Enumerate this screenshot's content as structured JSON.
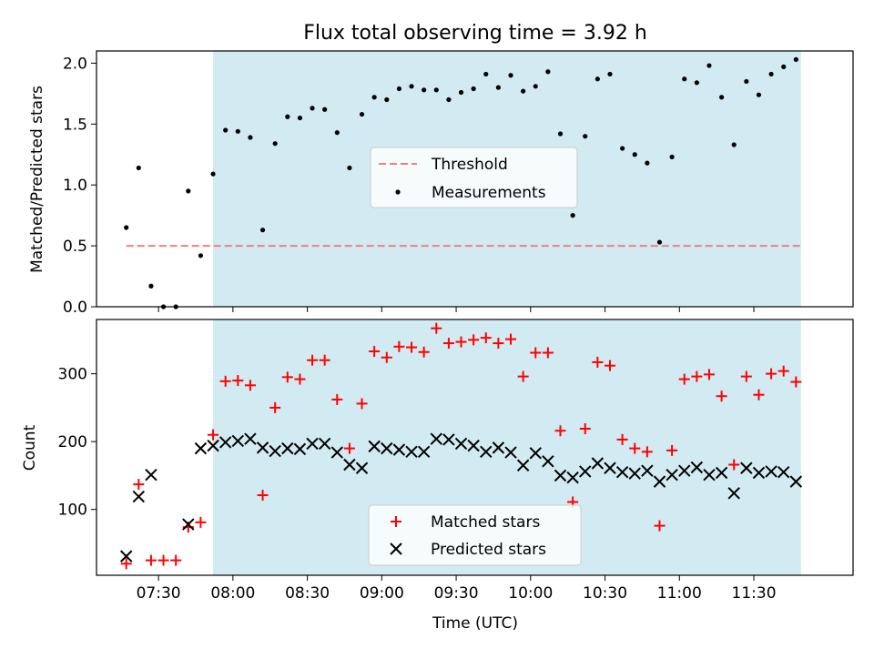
{
  "title": "Flux total observing time = 3.92 h",
  "colors": {
    "shade": "#add8e6",
    "threshold": "#f08080",
    "measurement": "#000000",
    "matched": "#ff0000",
    "predicted": "#000000"
  },
  "chart_data": [
    {
      "type": "scatter",
      "ylabel": "Matched/Predicted stars",
      "ylim": [
        0,
        2.1
      ],
      "yticks": [
        0.0,
        0.5,
        1.0,
        1.5,
        2.0
      ],
      "ytick_labels": [
        "0.0",
        "0.5",
        "1.0",
        "1.5",
        "2.0"
      ],
      "xlim": [
        "07:05",
        "12:10"
      ],
      "shaded_range": [
        "07:52",
        "11:49"
      ],
      "legend": "center",
      "legend_entries": [
        "Threshold",
        "Measurements"
      ],
      "threshold": {
        "name": "Threshold",
        "value": 0.5,
        "x": [
          "07:17",
          "11:49"
        ]
      },
      "series": [
        {
          "name": "Measurements",
          "x": [
            "07:17",
            "07:22",
            "07:27",
            "07:32",
            "07:37",
            "07:42",
            "07:47",
            "07:52",
            "07:57",
            "08:02",
            "08:07",
            "08:12",
            "08:17",
            "08:22",
            "08:27",
            "08:32",
            "08:37",
            "08:42",
            "08:47",
            "08:52",
            "08:57",
            "09:02",
            "09:07",
            "09:12",
            "09:17",
            "09:22",
            "09:27",
            "09:32",
            "09:37",
            "09:42",
            "09:47",
            "09:52",
            "09:57",
            "10:02",
            "10:07",
            "10:12",
            "10:17",
            "10:22",
            "10:27",
            "10:32",
            "10:37",
            "10:42",
            "10:47",
            "10:52",
            "10:57",
            "11:02",
            "11:07",
            "11:12",
            "11:17",
            "11:22",
            "11:27",
            "11:32",
            "11:37",
            "11:42",
            "11:47"
          ],
          "values": [
            0.65,
            1.14,
            0.17,
            0.0,
            0.0,
            0.95,
            0.42,
            1.09,
            1.45,
            1.44,
            1.39,
            0.63,
            1.34,
            1.56,
            1.55,
            1.63,
            1.62,
            1.43,
            1.14,
            1.58,
            1.72,
            1.7,
            1.79,
            1.81,
            1.78,
            1.78,
            1.7,
            1.76,
            1.79,
            1.91,
            1.8,
            1.9,
            1.77,
            1.81,
            1.93,
            1.42,
            0.75,
            1.4,
            1.87,
            1.91,
            1.3,
            1.25,
            1.18,
            0.53,
            1.23,
            1.87,
            1.84,
            1.98,
            1.72,
            1.33,
            1.85,
            1.74,
            1.91,
            1.97,
            2.03
          ]
        }
      ]
    },
    {
      "type": "scatter",
      "ylabel": "Count",
      "xlabel": "Time (UTC)",
      "ylim": [
        3,
        380
      ],
      "yticks": [
        100,
        200,
        300
      ],
      "ytick_labels": [
        "100",
        "200",
        "300"
      ],
      "xlim": [
        "07:05",
        "12:10"
      ],
      "xticks": [
        "07:30",
        "08:00",
        "08:30",
        "09:00",
        "09:30",
        "10:00",
        "10:30",
        "11:00",
        "11:30"
      ],
      "shaded_range": [
        "07:52",
        "11:49"
      ],
      "legend": "lower center",
      "legend_entries": [
        "Matched stars",
        "Predicted stars"
      ],
      "series": [
        {
          "name": "Matched stars",
          "x": [
            "07:17",
            "07:22",
            "07:27",
            "07:32",
            "07:37",
            "07:42",
            "07:47",
            "07:52",
            "07:57",
            "08:02",
            "08:07",
            "08:12",
            "08:17",
            "08:22",
            "08:27",
            "08:32",
            "08:37",
            "08:42",
            "08:47",
            "08:52",
            "08:57",
            "09:02",
            "09:07",
            "09:12",
            "09:17",
            "09:22",
            "09:27",
            "09:32",
            "09:37",
            "09:42",
            "09:47",
            "09:52",
            "09:57",
            "10:02",
            "10:07",
            "10:12",
            "10:17",
            "10:22",
            "10:27",
            "10:32",
            "10:37",
            "10:42",
            "10:47",
            "10:52",
            "10:57",
            "11:02",
            "11:07",
            "11:12",
            "11:17",
            "11:22",
            "11:27",
            "11:32",
            "11:37",
            "11:42",
            "11:47"
          ],
          "values": [
            20,
            137,
            25,
            25,
            25,
            74,
            81,
            210,
            289,
            290,
            283,
            121,
            250,
            295,
            292,
            320,
            320,
            262,
            190,
            256,
            333,
            324,
            340,
            339,
            332,
            367,
            345,
            347,
            350,
            353,
            345,
            351,
            296,
            331,
            331,
            216,
            111,
            219,
            317,
            312,
            203,
            190,
            185,
            76,
            187,
            292,
            296,
            299,
            267,
            166,
            296,
            269,
            300,
            304,
            288
          ]
        },
        {
          "name": "Predicted stars",
          "x": [
            "07:17",
            "07:22",
            "07:27",
            "07:32",
            "07:37",
            "07:42",
            "07:47",
            "07:52",
            "07:57",
            "08:02",
            "08:07",
            "08:12",
            "08:17",
            "08:22",
            "08:27",
            "08:32",
            "08:37",
            "08:42",
            "08:47",
            "08:52",
            "08:57",
            "09:02",
            "09:07",
            "09:12",
            "09:17",
            "09:22",
            "09:27",
            "09:32",
            "09:37",
            "09:42",
            "09:47",
            "09:52",
            "09:57",
            "10:02",
            "10:07",
            "10:12",
            "10:17",
            "10:22",
            "10:27",
            "10:32",
            "10:37",
            "10:42",
            "10:47",
            "10:52",
            "10:57",
            "11:02",
            "11:07",
            "11:12",
            "11:17",
            "11:22",
            "11:27",
            "11:32",
            "11:37",
            "11:42",
            "11:47"
          ],
          "values": [
            31,
            119,
            151,
            null,
            null,
            78,
            190,
            194,
            199,
            201,
            204,
            191,
            186,
            190,
            189,
            197,
            197,
            184,
            166,
            161,
            193,
            190,
            188,
            185,
            185,
            204,
            203,
            197,
            194,
            185,
            191,
            184,
            165,
            183,
            171,
            150,
            147,
            156,
            168,
            161,
            155,
            153,
            157,
            141,
            151,
            157,
            162,
            151,
            154,
            124,
            161,
            154,
            156,
            155,
            141
          ]
        }
      ]
    }
  ]
}
